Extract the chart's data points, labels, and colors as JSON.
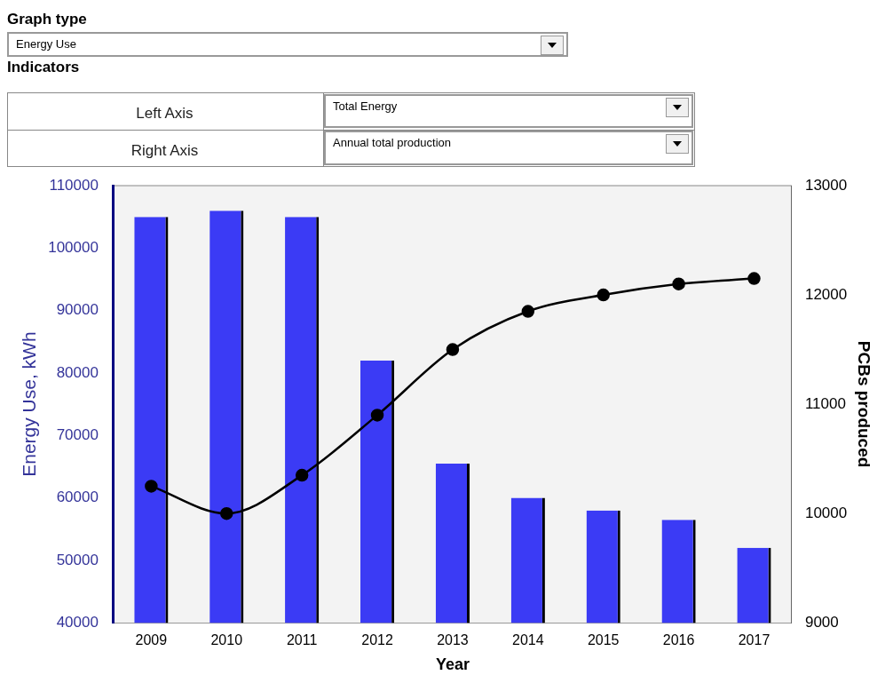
{
  "chart_data": {
    "type": "bar",
    "xlabel": "Year",
    "ylabel": "Energy Use, kWh",
    "y2label": "PCBs produced",
    "annotations": [
      "Graph type",
      "Energy Use",
      "Indicators",
      "Left Axis",
      "Total Energy",
      "Right Axis",
      "Annual total production"
    ],
    "categories": [
      "2009",
      "2010",
      "2011",
      "2012",
      "2013",
      "2014",
      "2015",
      "2016",
      "2017"
    ],
    "series": [
      {
        "color": "#3b3bf5",
        "values": [
          105000,
          106000,
          105000,
          82000,
          65500,
          60000,
          58000,
          56500,
          52000
        ]
      },
      {
        "type": "line",
        "axis": "y2",
        "color": "#000000",
        "marker": "circle",
        "values": [
          10250,
          10000,
          10350,
          10900,
          11500,
          11850,
          12000,
          12100,
          12150
        ]
      }
    ],
    "ylim": [
      40000,
      110000
    ],
    "yticks": [
      40000,
      50000,
      60000,
      70000,
      80000,
      90000,
      100000,
      110000
    ],
    "y2lim": [
      9000,
      13000
    ],
    "y2ticks": [
      9000,
      10000,
      11000,
      12000,
      13000
    ],
    "grid": false,
    "legend": false
  }
}
